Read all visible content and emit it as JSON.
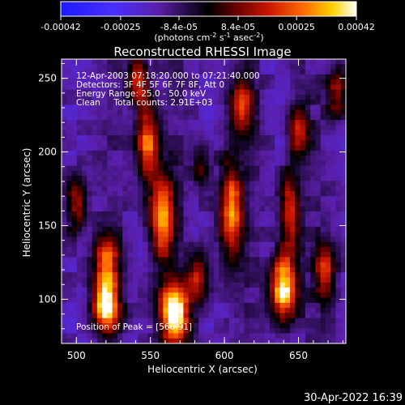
{
  "chart_data": {
    "type": "heatmap",
    "title": "Reconstructed RHESSI Image",
    "colorbar": {
      "range": [
        -0.00042,
        0.00042
      ],
      "tick_labels": [
        "-0.00042",
        "-0.00025",
        "-8.4e-05",
        "8.4e-05",
        "0.00025",
        "0.00042"
      ],
      "tick_values": [
        -0.00042,
        -0.00025,
        -8.4e-05,
        8.4e-05,
        0.00025,
        0.00042
      ],
      "unit_prefix": "(photons cm",
      "unit_exp1": "-2",
      "unit_mid": " s",
      "unit_exp2": "-1",
      "unit_mid2": " asec",
      "unit_exp3": "-2",
      "unit_suffix": ")",
      "colormap": "rainbow-blue-black-red-yellow-white"
    },
    "xlabel": "Heliocentric X (arcsec)",
    "ylabel": "Heliocentric Y (arcsec)",
    "xlim": [
      490,
      682
    ],
    "ylim": [
      70,
      263
    ],
    "xticks": [
      500,
      550,
      600,
      650
    ],
    "yticks": [
      100,
      150,
      200,
      250
    ],
    "annotations": [
      "12-Apr-2003 07:18:20.000 to 07:21:40.000",
      "Detectors: 3F 4F 5F 6F 7F 8F, Att 0",
      "Energy Range: 25.0 - 50.0 keV",
      "Clean     Total counts: 2.91E+03"
    ],
    "peak_label": "Position of Peak = [566,91]",
    "peak": [
      566,
      91
    ],
    "sources": [
      {
        "x": 520,
        "y": 98,
        "amp": 1.0,
        "sx": 6,
        "sy": 14
      },
      {
        "x": 520,
        "y": 128,
        "amp": 0.6,
        "sx": 6,
        "sy": 10
      },
      {
        "x": 566,
        "y": 91,
        "amp": 1.0,
        "sx": 7,
        "sy": 14
      },
      {
        "x": 558,
        "y": 155,
        "amp": 0.75,
        "sx": 6,
        "sy": 22
      },
      {
        "x": 548,
        "y": 205,
        "amp": 0.7,
        "sx": 5,
        "sy": 18
      },
      {
        "x": 542,
        "y": 250,
        "amp": 0.6,
        "sx": 5,
        "sy": 12
      },
      {
        "x": 604,
        "y": 160,
        "amp": 0.7,
        "sx": 6,
        "sy": 24
      },
      {
        "x": 612,
        "y": 232,
        "amp": 0.55,
        "sx": 6,
        "sy": 14
      },
      {
        "x": 640,
        "y": 108,
        "amp": 0.95,
        "sx": 6,
        "sy": 16
      },
      {
        "x": 644,
        "y": 160,
        "amp": 0.6,
        "sx": 5,
        "sy": 18
      },
      {
        "x": 650,
        "y": 215,
        "amp": 0.45,
        "sx": 5,
        "sy": 14
      },
      {
        "x": 668,
        "y": 120,
        "amp": 0.55,
        "sx": 5,
        "sy": 14
      },
      {
        "x": 676,
        "y": 240,
        "amp": 0.45,
        "sx": 5,
        "sy": 12
      },
      {
        "x": 500,
        "y": 165,
        "amp": 0.5,
        "sx": 5,
        "sy": 14
      },
      {
        "x": 582,
        "y": 115,
        "amp": 0.45,
        "sx": 5,
        "sy": 12
      },
      {
        "x": 585,
        "y": 190,
        "amp": 0.35,
        "sx": 4,
        "sy": 10
      }
    ]
  },
  "footer": {
    "timestamp": "30-Apr-2022 16:39"
  }
}
